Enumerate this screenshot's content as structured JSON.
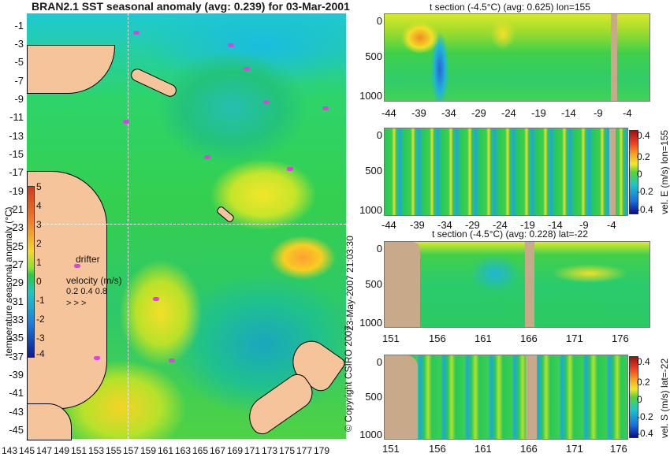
{
  "main_title": "BRAN2.1 SST seasonal anomaly (avg: 0.239) for 03-Mar-2001",
  "map": {
    "y_ticks": [
      "-1",
      "-3",
      "-5",
      "-7",
      "-9",
      "-11",
      "-13",
      "-15",
      "-17",
      "-19",
      "-21",
      "-23",
      "-25",
      "-27",
      "-29",
      "-31",
      "-33",
      "-35",
      "-37",
      "-39",
      "-41",
      "-43",
      "-45"
    ],
    "x_ticks": [
      "143",
      "145",
      "147",
      "149",
      "151",
      "153",
      "155",
      "157",
      "159",
      "161",
      "163",
      "165",
      "167",
      "169",
      "171",
      "173",
      "175",
      "177",
      "179"
    ],
    "colorbar_label": "temperature seasonal anomaly (°C)",
    "colorbar_ticks": [
      "5",
      "4",
      "3",
      "2",
      "1",
      "0",
      "-1",
      "-2",
      "-3",
      "-4"
    ],
    "drifter_label": "drifter",
    "velocity_label": "velocity (m/s)",
    "velocity_scale": "0.2 0.4 0.8",
    "colors": {
      "land": "#f6c49a",
      "drifter": "#e23ee6",
      "crosshair": "#ffffff"
    }
  },
  "panels": [
    {
      "title": "t section (-4.5°C) (avg: 0.625) lon=155",
      "y_ticks": [
        "0",
        "500",
        "1000"
      ],
      "x_ticks": [
        "-44",
        "-39",
        "-34",
        "-29",
        "-24",
        "-19",
        "-14",
        "-9",
        "-4"
      ]
    },
    {
      "title": "",
      "y_ticks": [
        "0",
        "500",
        "1000"
      ],
      "x_ticks": [
        "-44",
        "-39",
        "-34",
        "-29",
        "-24",
        "-19",
        "-14",
        "-9",
        "-4"
      ],
      "colorbar_label": "vel. E (m/s) lon=155",
      "colorbar_ticks": [
        "0.4",
        "0.2",
        "0",
        "-0.2",
        "-0.4"
      ]
    },
    {
      "title": "t section (-4.5°C) (avg: 0.228) lat=-22",
      "y_ticks": [
        "0",
        "500",
        "1000"
      ],
      "x_ticks": [
        "151",
        "156",
        "161",
        "166",
        "171",
        "176"
      ]
    },
    {
      "title": "",
      "y_ticks": [
        "0",
        "500",
        "1000"
      ],
      "x_ticks": [
        "151",
        "156",
        "161",
        "166",
        "171",
        "176"
      ],
      "colorbar_label": "vel. S (m/s) lat=-22",
      "colorbar_ticks": [
        "0.4",
        "0.2",
        "0",
        "-0.2",
        "-0.4"
      ]
    }
  ],
  "timestamp": "23-May-2007 21:03:30",
  "copyright": "© Copyright CSIRO 2007"
}
